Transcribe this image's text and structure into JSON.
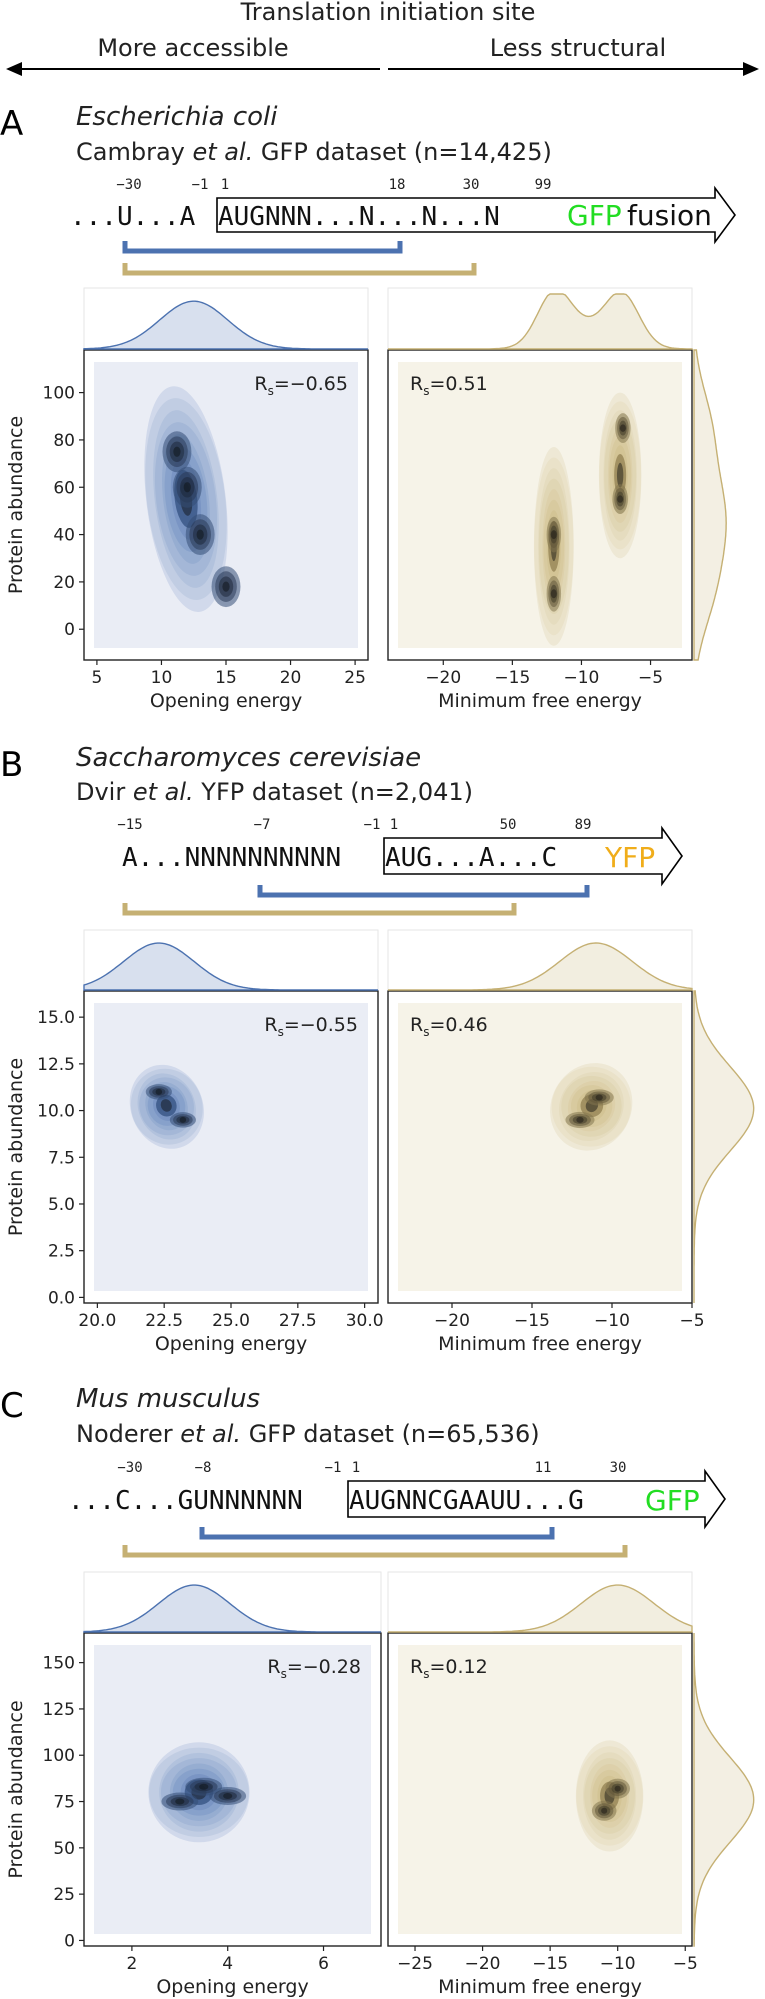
{
  "header": {
    "title": "Translation initiation site",
    "left_label": "More accessible",
    "right_label": "Less structural"
  },
  "colors": {
    "blue": "#4c72b0",
    "tan": "#c5b073",
    "blue_bg": "#eaedf5",
    "tan_bg": "#f6f3e8",
    "gfp": "#22dd22",
    "yfp": "#f0ad1a"
  },
  "panels": [
    {
      "letter": "A",
      "species": "Escherichia coli",
      "dataset_prefix": "Cambray ",
      "dataset_etal": "et al.",
      "dataset_suffix": " GFP dataset (n=14,425)",
      "seq_before": "...U...A",
      "seq_boxed": "AUGNNN...N...N...N",
      "seq_tag": "GFP",
      "seq_after": " fusion",
      "positions": [
        "−30",
        "−1",
        "1",
        "18",
        "30",
        "99"
      ],
      "r_open": "−0.65",
      "r_mfe": "0.51"
    },
    {
      "letter": "B",
      "species": "Saccharomyces cerevisiae",
      "dataset_prefix": "Dvir ",
      "dataset_etal": "et al.",
      "dataset_suffix": " YFP dataset (n=2,041)",
      "seq_before": "A...NNNNNNNNNN",
      "seq_boxed": "AUG...A...C",
      "seq_tag": "YFP",
      "seq_after": "",
      "positions": [
        "−15",
        "−7",
        "−1",
        "1",
        "50",
        "89"
      ],
      "r_open": "−0.55",
      "r_mfe": "0.46"
    },
    {
      "letter": "C",
      "species": "Mus musculus",
      "dataset_prefix": "Noderer ",
      "dataset_etal": "et al.",
      "dataset_suffix": " GFP dataset (n=65,536)",
      "seq_before": "...C...GUNNNNNN",
      "seq_boxed": "AUGNNCGAAUU...G",
      "seq_tag": "GFP",
      "seq_after": "",
      "positions": [
        "−30",
        "−8",
        "−1",
        "1",
        "11",
        "30"
      ],
      "r_open": "−0.28",
      "r_mfe": "0.12"
    }
  ],
  "chart_data": [
    {
      "type": "heatmap",
      "panel": "A",
      "color": "blue",
      "xlabel": "Opening energy",
      "ylabel": "Protein abundance",
      "xlim": [
        4,
        26
      ],
      "ylim": [
        -13,
        118
      ],
      "xticks": [
        "5",
        "10",
        "15",
        "20",
        "25"
      ],
      "xtick_values": [
        5,
        10,
        15,
        20,
        25
      ],
      "yticks": [
        "0",
        "20",
        "40",
        "60",
        "80",
        "100"
      ],
      "ytick_values": [
        0,
        20,
        40,
        60,
        80,
        100
      ],
      "correlation": "−0.65",
      "density_centers": [
        [
          11.2,
          75
        ],
        [
          12.0,
          60
        ],
        [
          13.0,
          40
        ],
        [
          15.0,
          18
        ]
      ],
      "marginal_x_peak": 12.5
    },
    {
      "type": "heatmap",
      "panel": "A",
      "color": "tan",
      "xlabel": "Minimum free energy",
      "ylabel": "",
      "xlim": [
        -24,
        -2
      ],
      "ylim": [
        -13,
        118
      ],
      "xticks": [
        "−20",
        "−15",
        "−10",
        "−5"
      ],
      "xtick_values": [
        -20,
        -15,
        -10,
        -5
      ],
      "yticks": [],
      "ytick_values": [],
      "correlation": "0.51",
      "density_centers": [
        [
          -12.0,
          15
        ],
        [
          -12.0,
          40
        ],
        [
          -7.0,
          85
        ],
        [
          -7.2,
          55
        ]
      ],
      "marginal_x_peaks": [
        -12,
        -7
      ]
    },
    {
      "type": "heatmap",
      "panel": "B",
      "color": "blue",
      "xlabel": "Opening energy",
      "ylabel": "Protein abundance",
      "xlim": [
        19.5,
        30.5
      ],
      "ylim": [
        -0.3,
        16.4
      ],
      "xticks": [
        "20.0",
        "22.5",
        "25.0",
        "27.5",
        "30.0"
      ],
      "xtick_values": [
        20,
        22.5,
        25,
        27.5,
        30
      ],
      "yticks": [
        "0.0",
        "2.5",
        "5.0",
        "7.5",
        "10.0",
        "12.5",
        "15.0"
      ],
      "ytick_values": [
        0,
        2.5,
        5,
        7.5,
        10,
        12.5,
        15
      ],
      "correlation": "−0.55",
      "density_centers": [
        [
          22.3,
          11.0
        ],
        [
          23.2,
          9.5
        ]
      ],
      "marginal_x_peak": 22.3
    },
    {
      "type": "heatmap",
      "panel": "B",
      "color": "tan",
      "xlabel": "Minimum free energy",
      "ylabel": "",
      "xlim": [
        -24,
        -5
      ],
      "ylim": [
        -0.3,
        16.4
      ],
      "xticks": [
        "−20",
        "−15",
        "−10",
        "−5"
      ],
      "xtick_values": [
        -20,
        -15,
        -10,
        -5
      ],
      "yticks": [],
      "ytick_values": [],
      "correlation": "0.46",
      "density_centers": [
        [
          -10.8,
          10.7
        ],
        [
          -12.0,
          9.5
        ]
      ],
      "marginal_x_peak": -11
    },
    {
      "type": "heatmap",
      "panel": "C",
      "color": "blue",
      "xlabel": "Opening energy",
      "ylabel": "Protein abundance",
      "xlim": [
        1,
        7.2
      ],
      "ylim": [
        -3,
        166
      ],
      "xticks": [
        "2",
        "4",
        "6"
      ],
      "xtick_values": [
        2,
        4,
        6
      ],
      "yticks": [
        "0",
        "25",
        "50",
        "75",
        "100",
        "125",
        "150"
      ],
      "ytick_values": [
        0,
        25,
        50,
        75,
        100,
        125,
        150
      ],
      "correlation": "−0.28",
      "density_centers": [
        [
          3.5,
          83
        ],
        [
          3.0,
          75
        ],
        [
          4.0,
          78
        ]
      ],
      "marginal_x_peak": 3.3
    },
    {
      "type": "heatmap",
      "panel": "C",
      "color": "tan",
      "xlabel": "Minimum free energy",
      "ylabel": "",
      "xlim": [
        -27,
        -4.5
      ],
      "ylim": [
        -3,
        166
      ],
      "xticks": [
        "−25",
        "−20",
        "−15",
        "−10",
        "−5"
      ],
      "xtick_values": [
        -25,
        -20,
        -15,
        -10,
        -5
      ],
      "yticks": [],
      "ytick_values": [],
      "correlation": "0.12",
      "density_centers": [
        [
          -10.0,
          82
        ],
        [
          -11.0,
          70
        ]
      ],
      "marginal_x_peak": -10
    }
  ]
}
